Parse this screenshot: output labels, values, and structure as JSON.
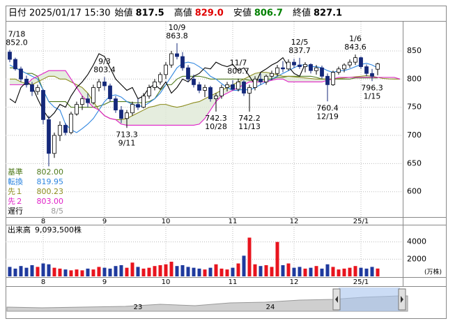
{
  "chart_data": {
    "type": "candlestick",
    "header": {
      "date_label": "日付",
      "date": "2025/01/17 15:30",
      "items": [
        {
          "label": "始値",
          "value": "817.5",
          "color": "#000000"
        },
        {
          "label": "高値",
          "value": "829.0",
          "color": "#e00000"
        },
        {
          "label": "安値",
          "value": "806.7",
          "color": "#008000"
        },
        {
          "label": "終値",
          "value": "827.1",
          "color": "#000000"
        }
      ]
    },
    "categories": [
      null,
      null,
      null,
      null,
      null,
      null,
      "8",
      null,
      null,
      null,
      null,
      null,
      null,
      null,
      null,
      null,
      null,
      "9",
      null,
      null,
      null,
      null,
      null,
      null,
      null,
      null,
      null,
      null,
      "10",
      null,
      null,
      null,
      null,
      null,
      null,
      null,
      null,
      null,
      null,
      null,
      "11",
      null,
      null,
      null,
      null,
      null,
      null,
      null,
      null,
      null,
      null,
      "12",
      null,
      null,
      null,
      null,
      null,
      null,
      null,
      null,
      null,
      null,
      null,
      "25/1",
      null,
      null,
      null,
      null,
      null,
      null,
      null
    ],
    "ylim": [
      555,
      902
    ],
    "yticks": [
      600,
      650,
      700,
      750,
      800,
      850
    ],
    "grid": true,
    "up_color": "#ffffff",
    "down_color": "#14287a",
    "ohlc": {
      "open": [
        848,
        835,
        818,
        800,
        790,
        778,
        780,
        728,
        668,
        700,
        718,
        705,
        738,
        755,
        765,
        758,
        785,
        795,
        788,
        765,
        745,
        730,
        740,
        755,
        750,
        770,
        785,
        795,
        808,
        825,
        845,
        840,
        820,
        800,
        790,
        780,
        785,
        765,
        770,
        785,
        790,
        782,
        795,
        775,
        785,
        800,
        795,
        805,
        810,
        820,
        818,
        830,
        825,
        822,
        826,
        815,
        820,
        805,
        790,
        812,
        818,
        825,
        830,
        838,
        822,
        810,
        817.5
      ],
      "high": [
        852.0,
        838,
        822,
        806,
        795,
        790,
        782,
        735,
        705,
        725,
        722,
        742,
        760,
        770,
        775,
        790,
        800,
        803.4,
        792,
        770,
        752,
        745,
        760,
        765,
        775,
        790,
        800,
        812,
        830,
        850,
        863.8,
        848,
        825,
        808,
        795,
        790,
        788,
        775,
        790,
        795,
        798,
        800.7,
        798,
        790,
        805,
        810,
        808,
        815,
        825,
        832,
        835,
        836,
        837.7,
        830,
        828,
        825,
        824,
        810,
        815,
        822,
        828,
        835,
        843.6,
        840,
        826,
        818,
        829.0
      ],
      "low": [
        830,
        815,
        795,
        785,
        770,
        772,
        720,
        645,
        660,
        690,
        700,
        702,
        735,
        745,
        750,
        755,
        778,
        780,
        760,
        740,
        722,
        713.3,
        735,
        745,
        748,
        765,
        780,
        790,
        800,
        820,
        835,
        815,
        795,
        785,
        775,
        768,
        760,
        742.3,
        765,
        778,
        780,
        778,
        770,
        742.2,
        780,
        790,
        790,
        798,
        805,
        812,
        815,
        820,
        818,
        812,
        810,
        808,
        800,
        760.4,
        788,
        808,
        812,
        820,
        825,
        818,
        805,
        796.3,
        806.7
      ],
      "close": [
        835,
        818,
        800,
        790,
        778,
        785,
        728,
        668,
        700,
        718,
        705,
        738,
        755,
        765,
        758,
        785,
        795,
        788,
        765,
        745,
        730,
        740,
        755,
        750,
        770,
        785,
        795,
        808,
        825,
        845,
        840,
        820,
        800,
        790,
        780,
        785,
        765,
        770,
        785,
        790,
        782,
        795,
        775,
        785,
        800,
        795,
        805,
        810,
        820,
        818,
        830,
        825,
        822,
        826,
        815,
        820,
        805,
        790,
        812,
        818,
        825,
        830,
        838,
        822,
        810,
        805,
        827.1
      ]
    },
    "annotations": [
      {
        "date": "7/18",
        "value": 852.0,
        "value_label": "852.0"
      },
      {
        "date": "9/3",
        "value": 803.4,
        "value_label": "803.4"
      },
      {
        "date": "9/11",
        "value": 713.3,
        "value_label": "713.3"
      },
      {
        "date": "10/9",
        "value": 863.8,
        "value_label": "863.8"
      },
      {
        "date": "10/28",
        "value": 742.3,
        "value_label": "742.3"
      },
      {
        "date": "11/7",
        "value": 800.7,
        "value_label": "800.7"
      },
      {
        "date": "11/13",
        "value": 742.2,
        "value_label": "742.2"
      },
      {
        "date": "12/5",
        "value": 837.7,
        "value_label": "837.7"
      },
      {
        "date": "12/19",
        "value": 760.4,
        "value_label": "760.4"
      },
      {
        "date": "1/6",
        "value": 843.6,
        "value_label": "843.6"
      },
      {
        "date": "1/15",
        "value": 796.3,
        "value_label": "796.3"
      }
    ],
    "indicators": [
      {
        "name": "基準",
        "color": "#4f7a1c",
        "value_label": "802.00",
        "values": [
          820,
          820,
          815,
          810,
          810,
          805,
          780,
          760,
          760,
          760,
          760,
          750,
          750,
          750,
          750,
          750,
          752,
          755,
          760,
          760,
          760,
          760,
          758,
          758,
          758,
          760,
          765,
          780,
          790,
          790,
          800,
          805,
          805,
          805,
          805,
          803,
          800,
          800,
          800,
          800,
          800,
          800,
          800,
          798,
          798,
          798,
          800,
          800,
          803,
          803,
          805,
          805,
          805,
          805,
          805,
          803,
          800,
          800,
          800,
          800,
          800,
          800,
          802,
          802,
          802,
          802,
          802,
          null,
          null,
          null,
          null
        ]
      },
      {
        "name": "転換",
        "color": "#2f86e0",
        "value_label": "819.95",
        "values": [
          825,
          820,
          815,
          810,
          805,
          800,
          780,
          760,
          750,
          745,
          720,
          710,
          705,
          712,
          720,
          730,
          745,
          760,
          770,
          772,
          768,
          760,
          755,
          752,
          752,
          758,
          765,
          775,
          790,
          805,
          820,
          828,
          830,
          828,
          822,
          815,
          805,
          800,
          792,
          785,
          780,
          780,
          782,
          780,
          785,
          790,
          795,
          800,
          805,
          810,
          815,
          820,
          825,
          825,
          822,
          822,
          820,
          815,
          812,
          815,
          815,
          818,
          822,
          826,
          828,
          825,
          819.95,
          null,
          null,
          null,
          null
        ]
      },
      {
        "name": "先１",
        "color": "#8c8c1e",
        "value_label": "800.23",
        "values": [
          800,
          800,
          795,
          792,
          790,
          795,
          800,
          805,
          805,
          800,
          800,
          795,
          790,
          785,
          775,
          760,
          745,
          735,
          730,
          728,
          728,
          730,
          735,
          740,
          745,
          750,
          752,
          755,
          755,
          752,
          750,
          752,
          755,
          758,
          760,
          765,
          770,
          775,
          780,
          785,
          790,
          795,
          800,
          805,
          810,
          812,
          812,
          810,
          808,
          805,
          805,
          804,
          803,
          802,
          801,
          800,
          800,
          800,
          800,
          801,
          802,
          803,
          804,
          805,
          806,
          805,
          803,
          801,
          800.23,
          800,
          800
        ]
      },
      {
        "name": "先２",
        "color": "#e020c8",
        "value_label": "803.00",
        "values": [
          790,
          790,
          790,
          790,
          800,
          805,
          810,
          815,
          815,
          815,
          815,
          800,
          785,
          770,
          760,
          750,
          745,
          735,
          730,
          728,
          720,
          718,
          718,
          718,
          718,
          718,
          718,
          718,
          718,
          718,
          718,
          718,
          718,
          718,
          720,
          730,
          745,
          760,
          770,
          775,
          780,
          785,
          790,
          795,
          795,
          795,
          795,
          798,
          800,
          800,
          795,
          795,
          795,
          795,
          795,
          795,
          795,
          798,
          800,
          803,
          803,
          803,
          803,
          803,
          803,
          803,
          803,
          803,
          803,
          803,
          800
        ]
      },
      {
        "name": "遅行",
        "color": "#000000",
        "label_color": "#999999",
        "value_label": "8/5",
        "values": [
          765,
          758,
          785,
          795,
          788,
          765,
          745,
          730,
          740,
          755,
          750,
          770,
          785,
          795,
          808,
          825,
          845,
          840,
          820,
          800,
          790,
          780,
          785,
          765,
          770,
          785,
          790,
          782,
          795,
          775,
          785,
          800,
          795,
          805,
          810,
          820,
          818,
          830,
          825,
          822,
          826,
          815,
          820,
          805,
          790,
          812,
          818,
          825,
          830,
          838,
          822,
          810,
          805,
          827.1,
          null,
          null,
          null,
          null,
          null,
          null,
          null,
          null,
          null,
          null,
          null,
          null,
          null,
          null,
          null,
          null,
          null
        ]
      }
    ],
    "cloud_color": "#dfe9d6",
    "volume": {
      "label": "出来高",
      "total_label": "9,093,500株",
      "unit": "(万株)",
      "up_color": "#e8141e",
      "down_color": "#1f3a9e",
      "ylim": [
        0,
        6000
      ],
      "yticks": [
        2000,
        4000
      ],
      "values": [
        1100,
        900,
        1200,
        1000,
        1300,
        1100,
        1500,
        1400,
        1000,
        900,
        800,
        700,
        800,
        700,
        900,
        800,
        1100,
        1000,
        900,
        1200,
        1300,
        1000,
        1600,
        1100,
        900,
        1000,
        1200,
        1300,
        1400,
        1700,
        1200,
        1300,
        1100,
        1000,
        900,
        800,
        1000,
        1400,
        900,
        800,
        1000,
        1500,
        2400,
        4500,
        1400,
        1200,
        1300,
        1100,
        4000,
        1300,
        1500,
        1000,
        1100,
        900,
        1000,
        1200,
        900,
        1400,
        1100,
        800,
        900,
        1000,
        1200,
        1000,
        900,
        1100,
        909.35
      ]
    },
    "navigator": {
      "labels": [
        "23",
        "24"
      ]
    }
  }
}
